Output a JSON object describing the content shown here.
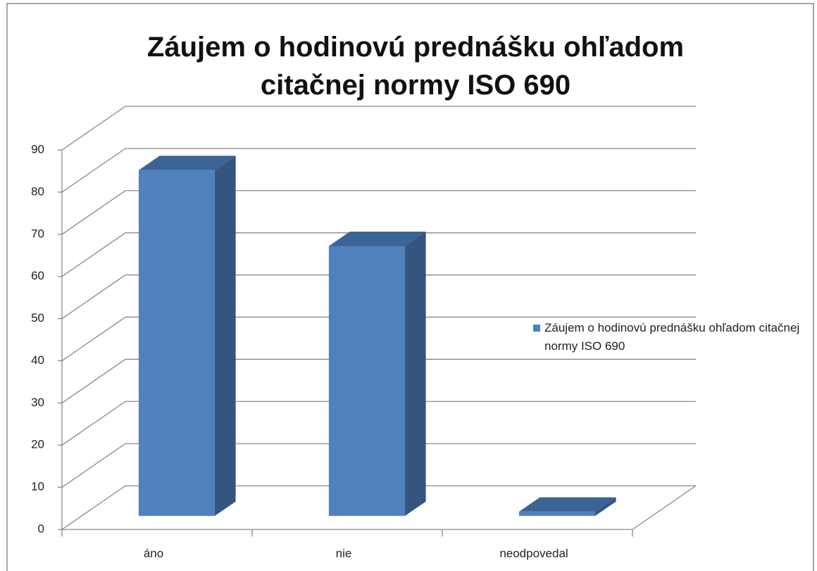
{
  "chart_data": {
    "type": "bar3d",
    "title": "Záujem o hodinovú prednášku ohľadom citačnej normy ISO 690",
    "categories": [
      "áno",
      "nie",
      "neodpovedal"
    ],
    "series": [
      {
        "name": "Záujem o hodinovú prednášku ohľadom citačnej normy ISO 690",
        "color": "#4f81bd",
        "values": [
          82,
          64,
          1
        ]
      }
    ],
    "ylim": [
      0,
      90
    ],
    "yticks": [
      0,
      10,
      20,
      30,
      40,
      50,
      60,
      70,
      80,
      90
    ],
    "grid": true,
    "legend": "right"
  }
}
